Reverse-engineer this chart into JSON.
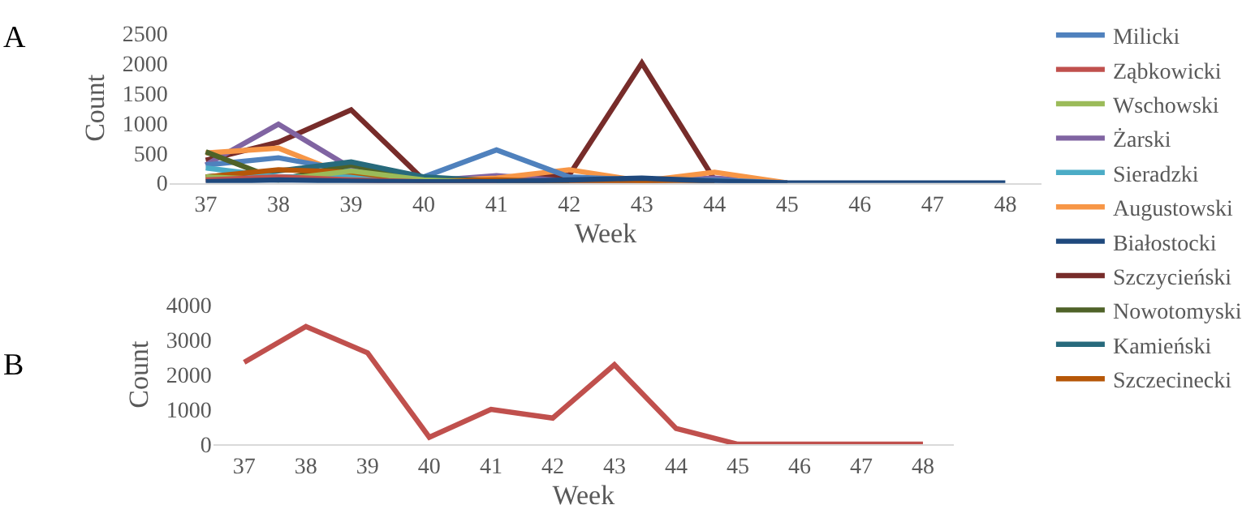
{
  "chart_data": [
    {
      "type": "line",
      "title": "A",
      "xlabel": "Week",
      "ylabel": "Count",
      "categories": [
        "37",
        "38",
        "39",
        "40",
        "41",
        "42",
        "43",
        "44",
        "45",
        "46",
        "47",
        "48"
      ],
      "ylim": [
        0,
        2500
      ],
      "yticks": [
        0,
        500,
        1000,
        1500,
        2000,
        2500
      ],
      "grid": false,
      "legend": "right",
      "marker": "none",
      "line_style": "solid",
      "series": [
        {
          "name": "Milicki",
          "color": "#4f81bd",
          "values": [
            300,
            420,
            200,
            100,
            550,
            100,
            50,
            50,
            0,
            null,
            null,
            null
          ]
        },
        {
          "name": "Ząbkowicki",
          "color": "#c0504d",
          "values": [
            50,
            100,
            50,
            20,
            0,
            null,
            null,
            null,
            null,
            null,
            null,
            null
          ]
        },
        {
          "name": "Wschowski",
          "color": "#9bbb59",
          "values": [
            100,
            50,
            200,
            50,
            0,
            null,
            null,
            null,
            null,
            null,
            null,
            null
          ]
        },
        {
          "name": "Żarski",
          "color": "#8064a2",
          "values": [
            300,
            980,
            250,
            30,
            120,
            30,
            30,
            80,
            0,
            null,
            null,
            null
          ]
        },
        {
          "name": "Sieradzki",
          "color": "#4bacc6",
          "values": [
            250,
            100,
            100,
            20,
            0,
            null,
            null,
            null,
            null,
            null,
            null,
            null
          ]
        },
        {
          "name": "Augustowski",
          "color": "#f79646",
          "values": [
            500,
            580,
            100,
            30,
            80,
            220,
            30,
            180,
            0,
            null,
            null,
            null
          ]
        },
        {
          "name": "Białostocki",
          "color": "#1f497d",
          "values": [
            20,
            50,
            30,
            20,
            20,
            50,
            80,
            30,
            0,
            0,
            0,
            0
          ]
        },
        {
          "name": "Szczycieński",
          "color": "#772c2a",
          "values": [
            380,
            680,
            1220,
            50,
            50,
            130,
            2000,
            50,
            0,
            null,
            null,
            null
          ]
        },
        {
          "name": "Nowotomyski",
          "color": "#4f6228",
          "values": [
            520,
            50,
            300,
            50,
            0,
            null,
            null,
            null,
            null,
            null,
            null,
            null
          ]
        },
        {
          "name": "Kamieński",
          "color": "#276a7c",
          "values": [
            100,
            200,
            350,
            100,
            30,
            0,
            null,
            null,
            null,
            null,
            null,
            null
          ]
        },
        {
          "name": "Szczecinecki",
          "color": "#b65708",
          "values": [
            100,
            220,
            180,
            30,
            50,
            20,
            20,
            0,
            null,
            null,
            null,
            null
          ]
        }
      ]
    },
    {
      "type": "line",
      "title": "B",
      "xlabel": "Week",
      "ylabel": "Count",
      "categories": [
        "37",
        "38",
        "39",
        "40",
        "41",
        "42",
        "43",
        "44",
        "45",
        "46",
        "47",
        "48"
      ],
      "ylim": [
        0,
        4000
      ],
      "yticks": [
        0,
        1000,
        2000,
        3000,
        4000
      ],
      "grid": false,
      "legend": false,
      "marker": "none",
      "line_style": "solid",
      "series": [
        {
          "color": "#c0504d",
          "values": [
            2350,
            3380,
            2620,
            200,
            1000,
            750,
            2280,
            450,
            0,
            0,
            0,
            0
          ]
        }
      ]
    }
  ]
}
